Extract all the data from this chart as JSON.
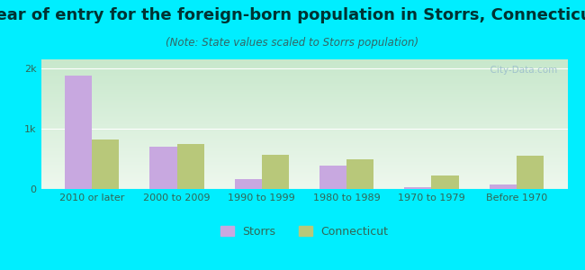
{
  "title": "Year of entry for the foreign-born population in Storrs, Connecticut",
  "subtitle": "(Note: State values scaled to Storrs population)",
  "categories": [
    "2010 or later",
    "2000 to 2009",
    "1990 to 1999",
    "1980 to 1989",
    "1970 to 1979",
    "Before 1970"
  ],
  "storrs_values": [
    1880,
    700,
    170,
    390,
    25,
    70
  ],
  "ct_values": [
    820,
    740,
    570,
    500,
    230,
    550
  ],
  "storrs_color": "#c8a8e0",
  "ct_color": "#b8c87a",
  "bar_width": 0.32,
  "ylim": [
    0,
    2150
  ],
  "yticks": [
    0,
    1000,
    2000
  ],
  "ytick_labels": [
    "0",
    "1k",
    "2k"
  ],
  "bg_color": "#00eeff",
  "plot_bg_top": "#c8e8cc",
  "plot_bg_bottom": "#eef8ee",
  "title_fontsize": 13,
  "subtitle_fontsize": 8.5,
  "tick_fontsize": 8,
  "legend_fontsize": 9,
  "title_color": "#003333",
  "subtitle_color": "#336666",
  "tick_color": "#336655",
  "watermark_text": "  City-Data.com"
}
